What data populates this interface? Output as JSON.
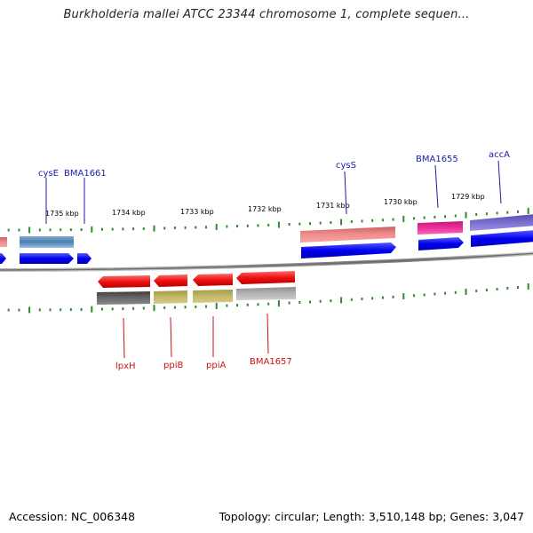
{
  "title": "Burkholderia mallei ATCC 23344 chromosome 1, complete sequen...",
  "footer": {
    "accession": "Accession: NC_006348",
    "summary": "Topology: circular; Length: 3,510,148 bp; Genes: 3,047"
  },
  "colors": {
    "tick": "#2e8b2e",
    "top_label": "#1a1aa8",
    "bottom_label": "#cc1111",
    "backbone": "#8a8a8a",
    "cds_forward": "#0000ee",
    "cds_reverse": "#ee1111"
  },
  "ticks": [
    "1735 kbp",
    "1734 kbp",
    "1733 kbp",
    "1732 kbp",
    "1731 kbp",
    "1730 kbp",
    "1729 kbp"
  ],
  "top_genes": [
    "cysE",
    "BMA1661",
    "cysS",
    "BMA1655",
    "accA"
  ],
  "bottom_genes": [
    "lpxH",
    "ppiB",
    "ppiA",
    "BMA1657"
  ]
}
